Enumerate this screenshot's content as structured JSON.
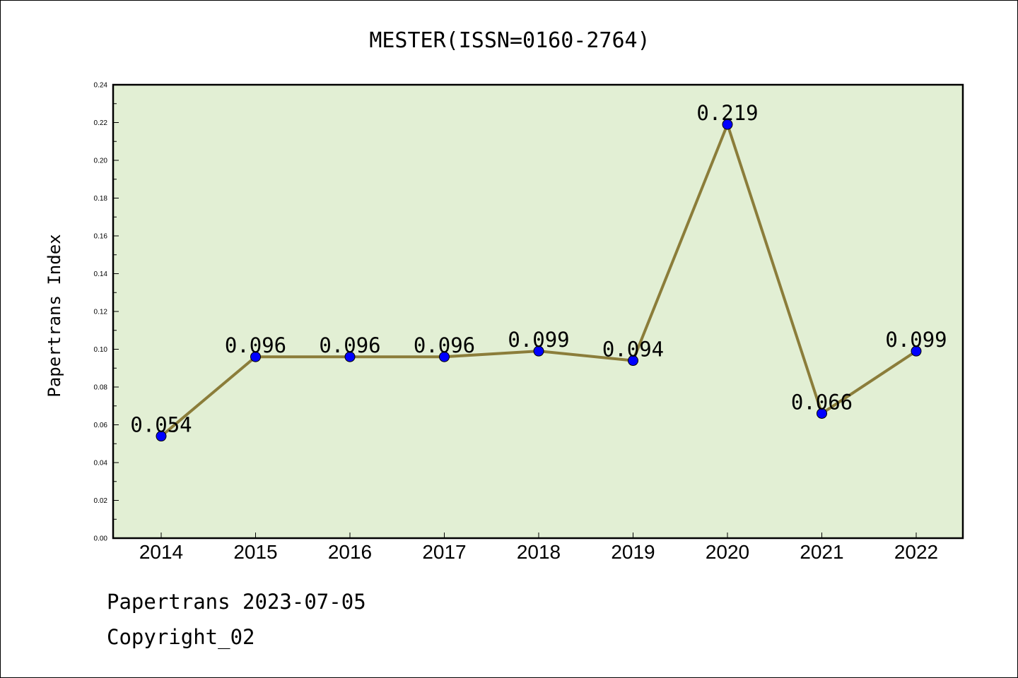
{
  "chart_data": {
    "type": "line",
    "title": "MESTER(ISSN=0160-2764)",
    "xlabel": "",
    "ylabel": "Papertrans Index",
    "categories": [
      "2014",
      "2015",
      "2016",
      "2017",
      "2018",
      "2019",
      "2020",
      "2021",
      "2022"
    ],
    "values": [
      0.054,
      0.096,
      0.096,
      0.096,
      0.099,
      0.094,
      0.219,
      0.066,
      0.099
    ],
    "data_labels": [
      "0.054",
      "0.096",
      "0.096",
      "0.096",
      "0.099",
      "0.094",
      "0.219",
      "0.066",
      "0.099"
    ],
    "ylim": [
      0.0,
      0.24
    ],
    "yticks": [
      "0.00",
      "0.02",
      "0.04",
      "0.06",
      "0.08",
      "0.10",
      "0.12",
      "0.14",
      "0.16",
      "0.18",
      "0.20",
      "0.22",
      "0.24"
    ],
    "grid": false,
    "colors": {
      "line": "#8b7d3a",
      "marker": "#0000ff",
      "plot_background": "#e2efd4"
    }
  },
  "footer": {
    "line1": "Papertrans 2023-07-05",
    "line2": "Copyright_02"
  }
}
